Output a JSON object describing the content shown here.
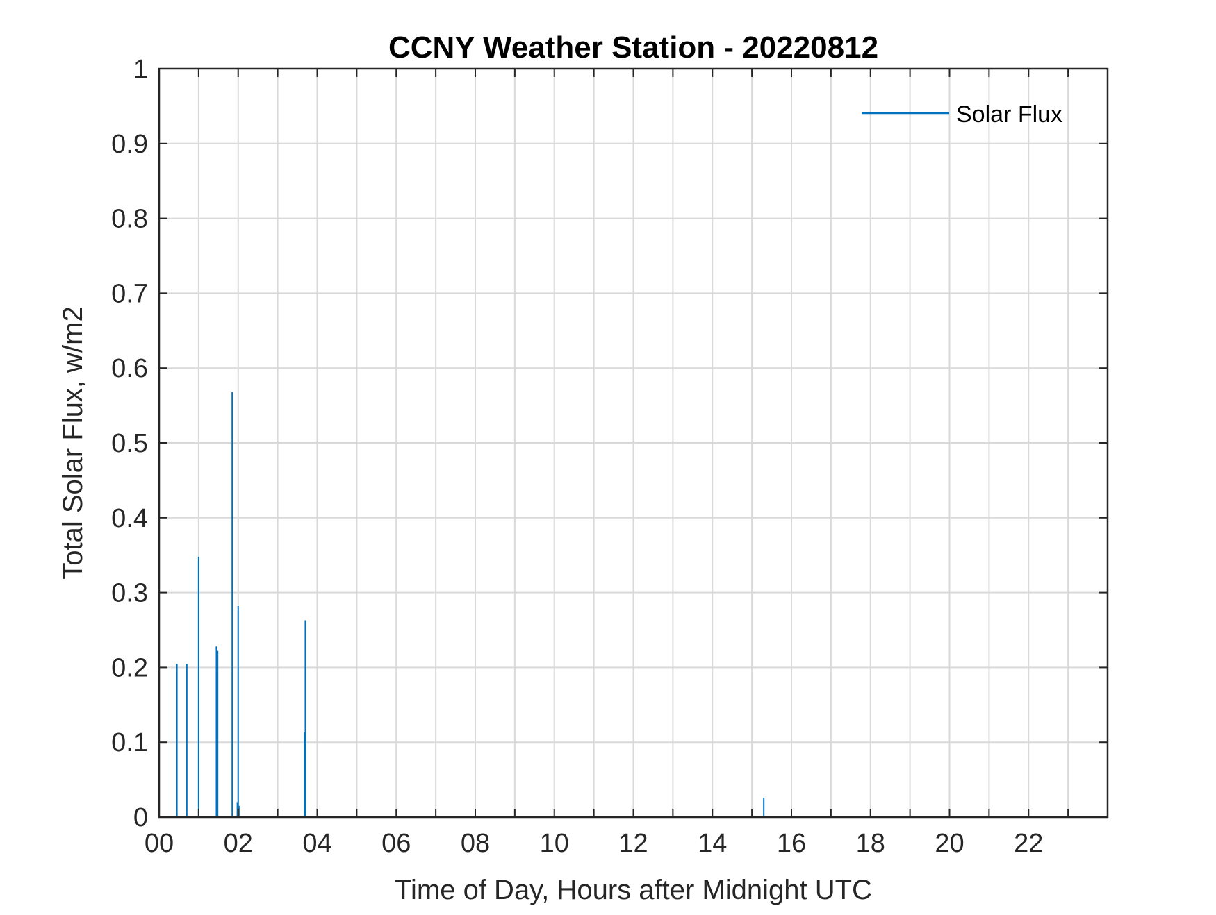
{
  "chart_data": {
    "type": "line",
    "title": "CCNY Weather Station - 20220812",
    "xlabel": "Time of Day, Hours after Midnight UTC",
    "ylabel": "Total Solar Flux, w/m2",
    "xlim": [
      0,
      24
    ],
    "ylim": [
      0,
      1
    ],
    "grid": true,
    "legend_position": "top-right",
    "x_ticks": [
      0,
      1,
      2,
      3,
      4,
      5,
      6,
      7,
      8,
      9,
      10,
      11,
      12,
      13,
      14,
      15,
      16,
      17,
      18,
      19,
      20,
      21,
      22,
      23
    ],
    "x_tick_labels": [
      "00",
      "02",
      "04",
      "06",
      "08",
      "10",
      "12",
      "14",
      "16",
      "18",
      "20",
      "22"
    ],
    "x_tick_label_values": [
      0,
      2,
      4,
      6,
      8,
      10,
      12,
      14,
      16,
      18,
      20,
      22
    ],
    "y_ticks": [
      0,
      0.1,
      0.2,
      0.3,
      0.4,
      0.5,
      0.6,
      0.7,
      0.8,
      0.9,
      1
    ],
    "y_tick_labels": [
      "0",
      "0.1",
      "0.2",
      "0.3",
      "0.4",
      "0.5",
      "0.6",
      "0.7",
      "0.8",
      "0.9",
      "1"
    ],
    "series": [
      {
        "name": "Solar Flux",
        "color": "#0072BD",
        "spikes": [
          {
            "x": 0.45,
            "y": 0.205
          },
          {
            "x": 0.7,
            "y": 0.205
          },
          {
            "x": 1.0,
            "y": 0.348
          },
          {
            "x": 1.45,
            "y": 0.228
          },
          {
            "x": 1.48,
            "y": 0.222
          },
          {
            "x": 1.85,
            "y": 0.568
          },
          {
            "x": 1.98,
            "y": 0.02
          },
          {
            "x": 2.0,
            "y": 0.282
          },
          {
            "x": 2.02,
            "y": 0.015
          },
          {
            "x": 3.68,
            "y": 0.113
          },
          {
            "x": 3.7,
            "y": 0.263
          },
          {
            "x": 15.3,
            "y": 0.026
          }
        ]
      }
    ]
  }
}
